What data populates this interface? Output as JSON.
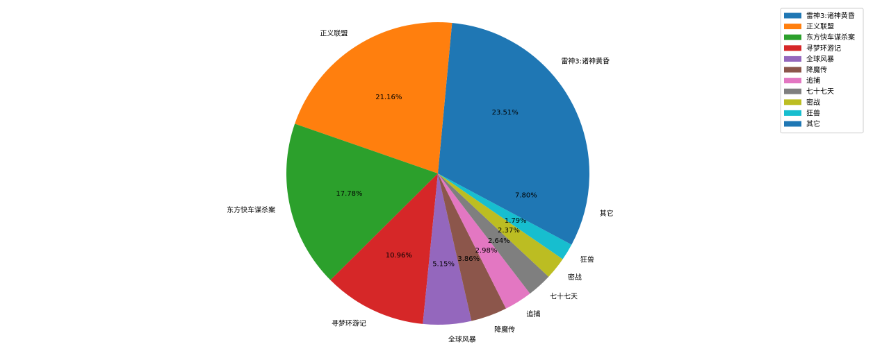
{
  "chart_data": {
    "type": "pie",
    "categories": [
      "雷神3:诸神黄昏",
      "正义联盟",
      "东方快车谋杀案",
      "寻梦环游记",
      "全球风暴",
      "降魔传",
      "追捕",
      "七十七天",
      "密战",
      "狂兽",
      "其它"
    ],
    "values": [
      23.51,
      21.16,
      17.78,
      10.96,
      5.15,
      3.86,
      2.98,
      2.64,
      2.37,
      1.79,
      7.8
    ],
    "value_labels": [
      "23.51%",
      "21.16%",
      "17.78%",
      "10.96%",
      "5.15%",
      "3.86%",
      "2.98%",
      "2.64%",
      "2.37%",
      "1.79%",
      "7.80%"
    ],
    "colors": [
      "#1f77b4",
      "#ff7f0e",
      "#2ca02c",
      "#d62728",
      "#9467bd",
      "#8c564b",
      "#e377c2",
      "#7f7f7f",
      "#bcbd22",
      "#17becf",
      "#1f77b4"
    ],
    "legend": "upper right"
  }
}
